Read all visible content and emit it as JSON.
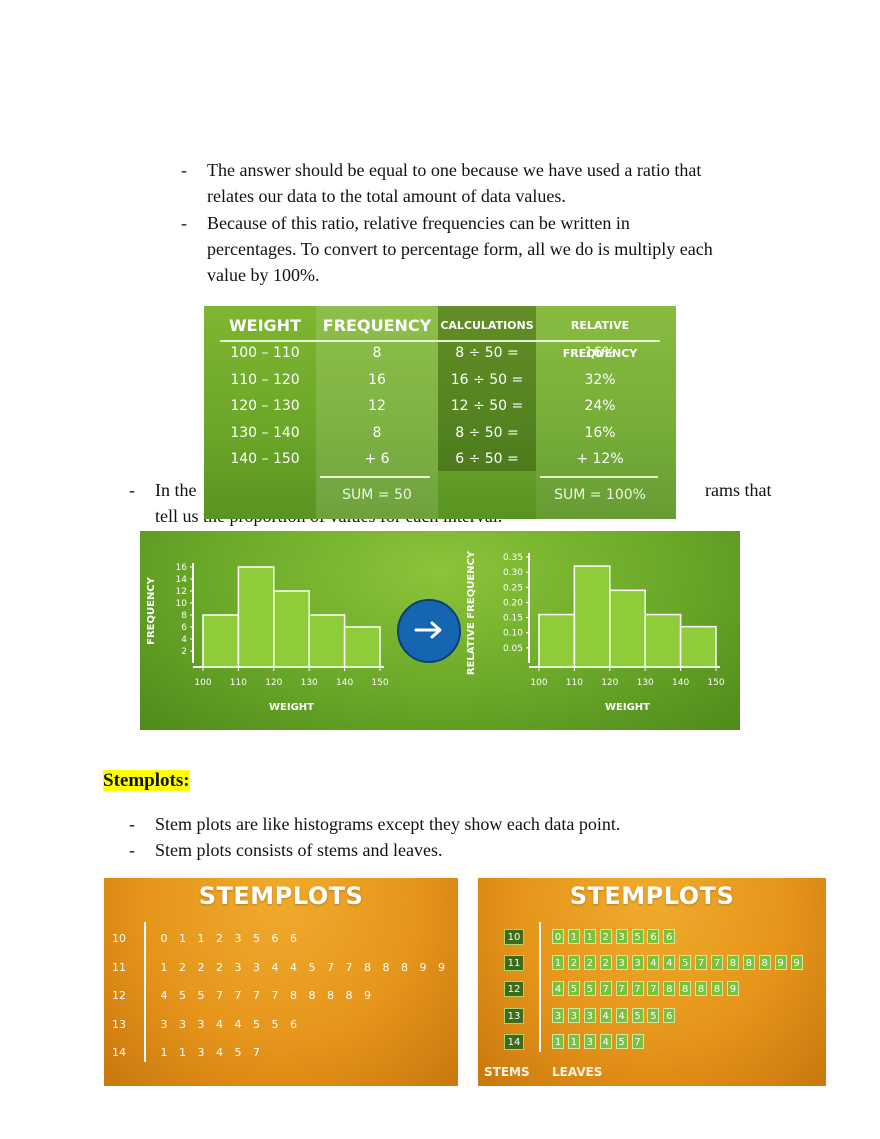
{
  "bullets_top": [
    {
      "lines": [
        "The answer should be equal to one because we have used a ratio that",
        "relates our data to the total amount of data values."
      ]
    },
    {
      "lines": [
        "Because of this ratio, relative frequencies can be written in",
        "percentages. To convert to percentage form, all we do is multiply each",
        "value by 100%."
      ]
    }
  ],
  "bullet_mid": {
    "line1_start": "In the",
    "line1_end": "rams that",
    "line2": "tell us the proportion of values for each interval."
  },
  "table": {
    "headers": [
      "WEIGHT",
      "FREQUENCY",
      "CALCULATIONS",
      "RELATIVE FREQUENCY"
    ],
    "rows": [
      {
        "weight": "100 – 110",
        "freq": "8",
        "calc": "8  ÷ 50   =",
        "rel": "16%"
      },
      {
        "weight": "110 – 120",
        "freq": "16",
        "calc": "16  ÷ 50   =",
        "rel": "32%"
      },
      {
        "weight": "120 – 130",
        "freq": "12",
        "calc": "12  ÷ 50   =",
        "rel": "24%"
      },
      {
        "weight": "130 – 140",
        "freq": "8",
        "calc": "8  ÷ 50   =",
        "rel": "16%"
      },
      {
        "weight": "140 – 150",
        "freq": "+   6",
        "calc": "6  ÷ 50   =",
        "rel": "+ 12%"
      }
    ],
    "sum_freq": "SUM = 50",
    "sum_rel": "SUM = 100%"
  },
  "chart_data": [
    {
      "type": "bar",
      "xlabel": "WEIGHT",
      "ylabel": "FREQUENCY",
      "x_ticks": [
        "100",
        "110",
        "120",
        "130",
        "140",
        "150"
      ],
      "y_ticks": [
        "2",
        "4",
        "6",
        "8",
        "10",
        "12",
        "14",
        "16"
      ],
      "categories": [
        "100–110",
        "110–120",
        "120–130",
        "130–140",
        "140–150"
      ],
      "values": [
        8,
        16,
        12,
        8,
        6
      ],
      "ylim": [
        0,
        16
      ]
    },
    {
      "type": "bar",
      "xlabel": "WEIGHT",
      "ylabel": "RELATIVE FREQUENCY",
      "x_ticks": [
        "100",
        "110",
        "120",
        "130",
        "140",
        "150"
      ],
      "y_ticks": [
        "0.05",
        "0.10",
        "0.15",
        "0.20",
        "0.25",
        "0.30",
        "0.35"
      ],
      "categories": [
        "100–110",
        "110–120",
        "120–130",
        "130–140",
        "140–150"
      ],
      "values": [
        0.16,
        0.32,
        0.24,
        0.16,
        0.12
      ],
      "ylim": [
        0,
        0.35
      ]
    }
  ],
  "arrow_icon": "right-arrow-icon",
  "section_heading": "Stemplots:",
  "bullets_bottom": [
    "Stem plots are like histograms except they show each data point.",
    "Stem plots consists of stems and leaves."
  ],
  "stemplot": {
    "title": "STEMPLOTS",
    "rows": [
      {
        "stem": "10",
        "leaves": [
          "0",
          "1",
          "1",
          "2",
          "3",
          "5",
          "6",
          "6"
        ]
      },
      {
        "stem": "11",
        "leaves": [
          "1",
          "2",
          "2",
          "2",
          "3",
          "3",
          "4",
          "4",
          "5",
          "7",
          "7",
          "8",
          "8",
          "8",
          "9",
          "9"
        ]
      },
      {
        "stem": "12",
        "leaves": [
          "4",
          "5",
          "5",
          "7",
          "7",
          "7",
          "7",
          "8",
          "8",
          "8",
          "8",
          "9"
        ]
      },
      {
        "stem": "13",
        "leaves": [
          "3",
          "3",
          "3",
          "4",
          "4",
          "5",
          "5",
          "6"
        ]
      },
      {
        "stem": "14",
        "leaves": [
          "1",
          "1",
          "3",
          "4",
          "5",
          "7"
        ]
      }
    ],
    "stems_label": "STEMS",
    "leaves_label": "LEAVES"
  },
  "colors": {
    "green": "#6aa828",
    "orange": "#e5951a",
    "highlight": "#ffff00",
    "arrow_circle": "#1565b0"
  }
}
